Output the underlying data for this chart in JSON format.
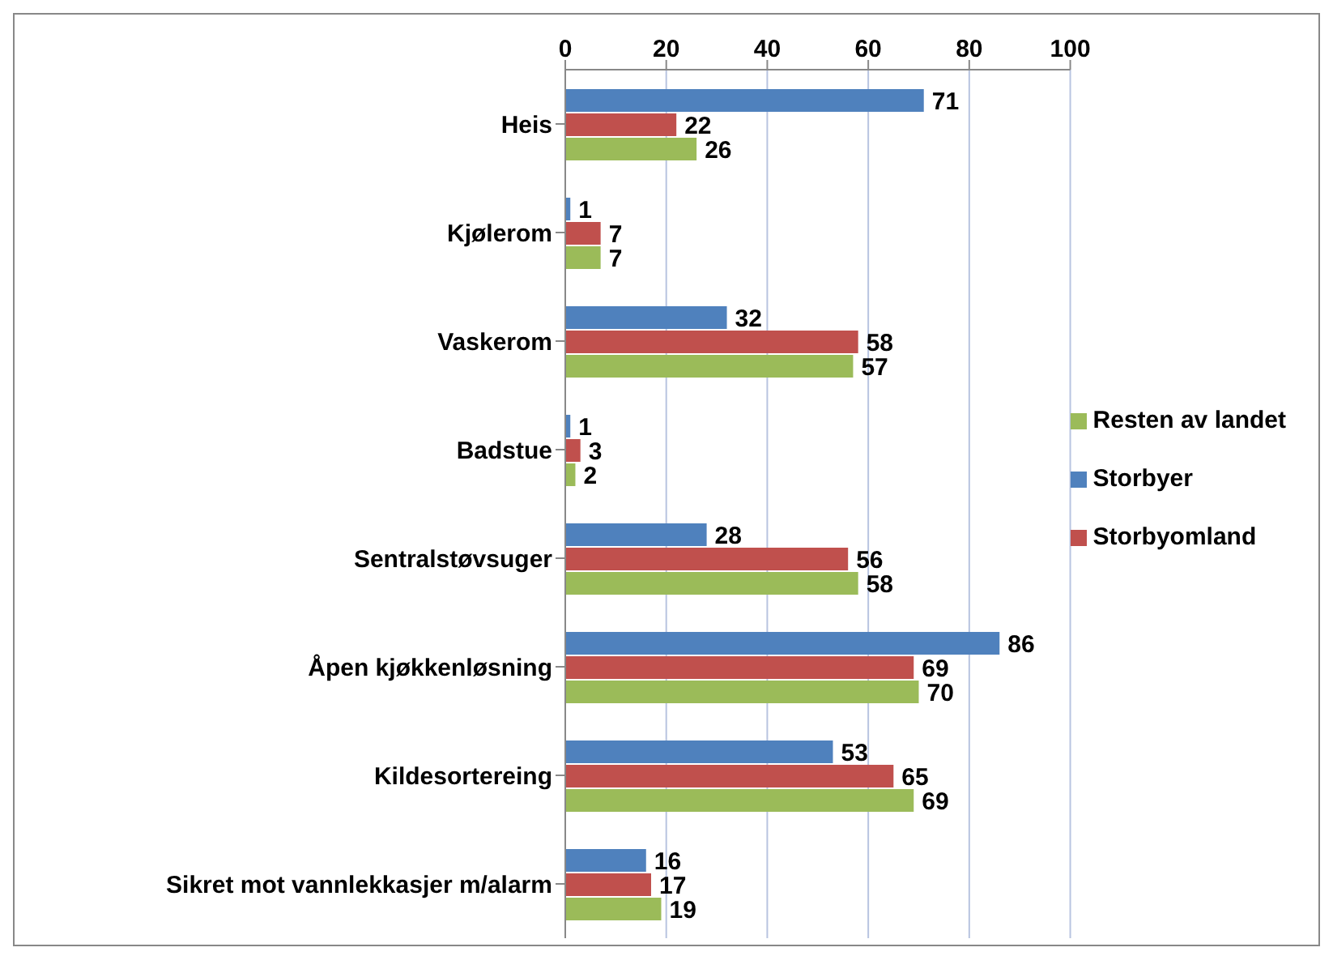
{
  "chart_data": {
    "type": "bar",
    "orientation": "horizontal",
    "categories": [
      "Heis",
      "Kjølerom",
      "Vaskerom",
      "Badstue",
      "Sentralstøvsuger",
      "Åpen kjøkkenløsning",
      "Kildesortereing",
      "Sikret mot vannlekkasjer m/alarm"
    ],
    "series": [
      {
        "name": "Storbyer",
        "color": "#4f81bd",
        "values": [
          71,
          1,
          32,
          1,
          28,
          86,
          53,
          16
        ]
      },
      {
        "name": "Storbyomland",
        "color": "#c0504d",
        "values": [
          22,
          7,
          58,
          3,
          56,
          69,
          65,
          17
        ]
      },
      {
        "name": "Resten av landet",
        "color": "#9bbb59",
        "values": [
          26,
          7,
          57,
          2,
          58,
          70,
          69,
          19
        ]
      }
    ],
    "xlim": [
      0,
      100
    ],
    "xticks": [
      0,
      20,
      40,
      60,
      80,
      100
    ],
    "grid": "x",
    "legend": "right",
    "data_labels": true
  }
}
